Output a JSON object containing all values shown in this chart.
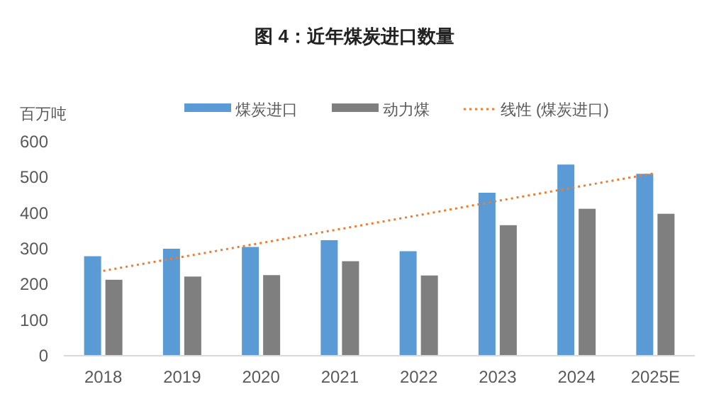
{
  "chart_data": {
    "type": "bar",
    "title": "图 4：近年煤炭进口数量",
    "ylabel": "百万吨",
    "categories": [
      "2018",
      "2019",
      "2020",
      "2021",
      "2022",
      "2023",
      "2024",
      "2025E"
    ],
    "series": [
      {
        "name": "煤炭进口",
        "color": "#5b9bd5",
        "values": [
          279,
          300,
          305,
          324,
          293,
          457,
          536,
          510
        ]
      },
      {
        "name": "动力煤",
        "color": "#7f7f7f",
        "values": [
          213,
          222,
          226,
          265,
          225,
          366,
          412,
          398
        ]
      },
      {
        "name": "线性 (煤炭进口)",
        "type": "line",
        "line_style": "dotted",
        "color": "#ed7d31",
        "values": [
          238,
          277,
          316,
          355,
          394,
          434,
          473,
          512
        ]
      }
    ],
    "ylim": [
      0,
      600
    ],
    "yticks": [
      0,
      100,
      200,
      300,
      400,
      500,
      600
    ],
    "grid": false,
    "legend": "top"
  }
}
